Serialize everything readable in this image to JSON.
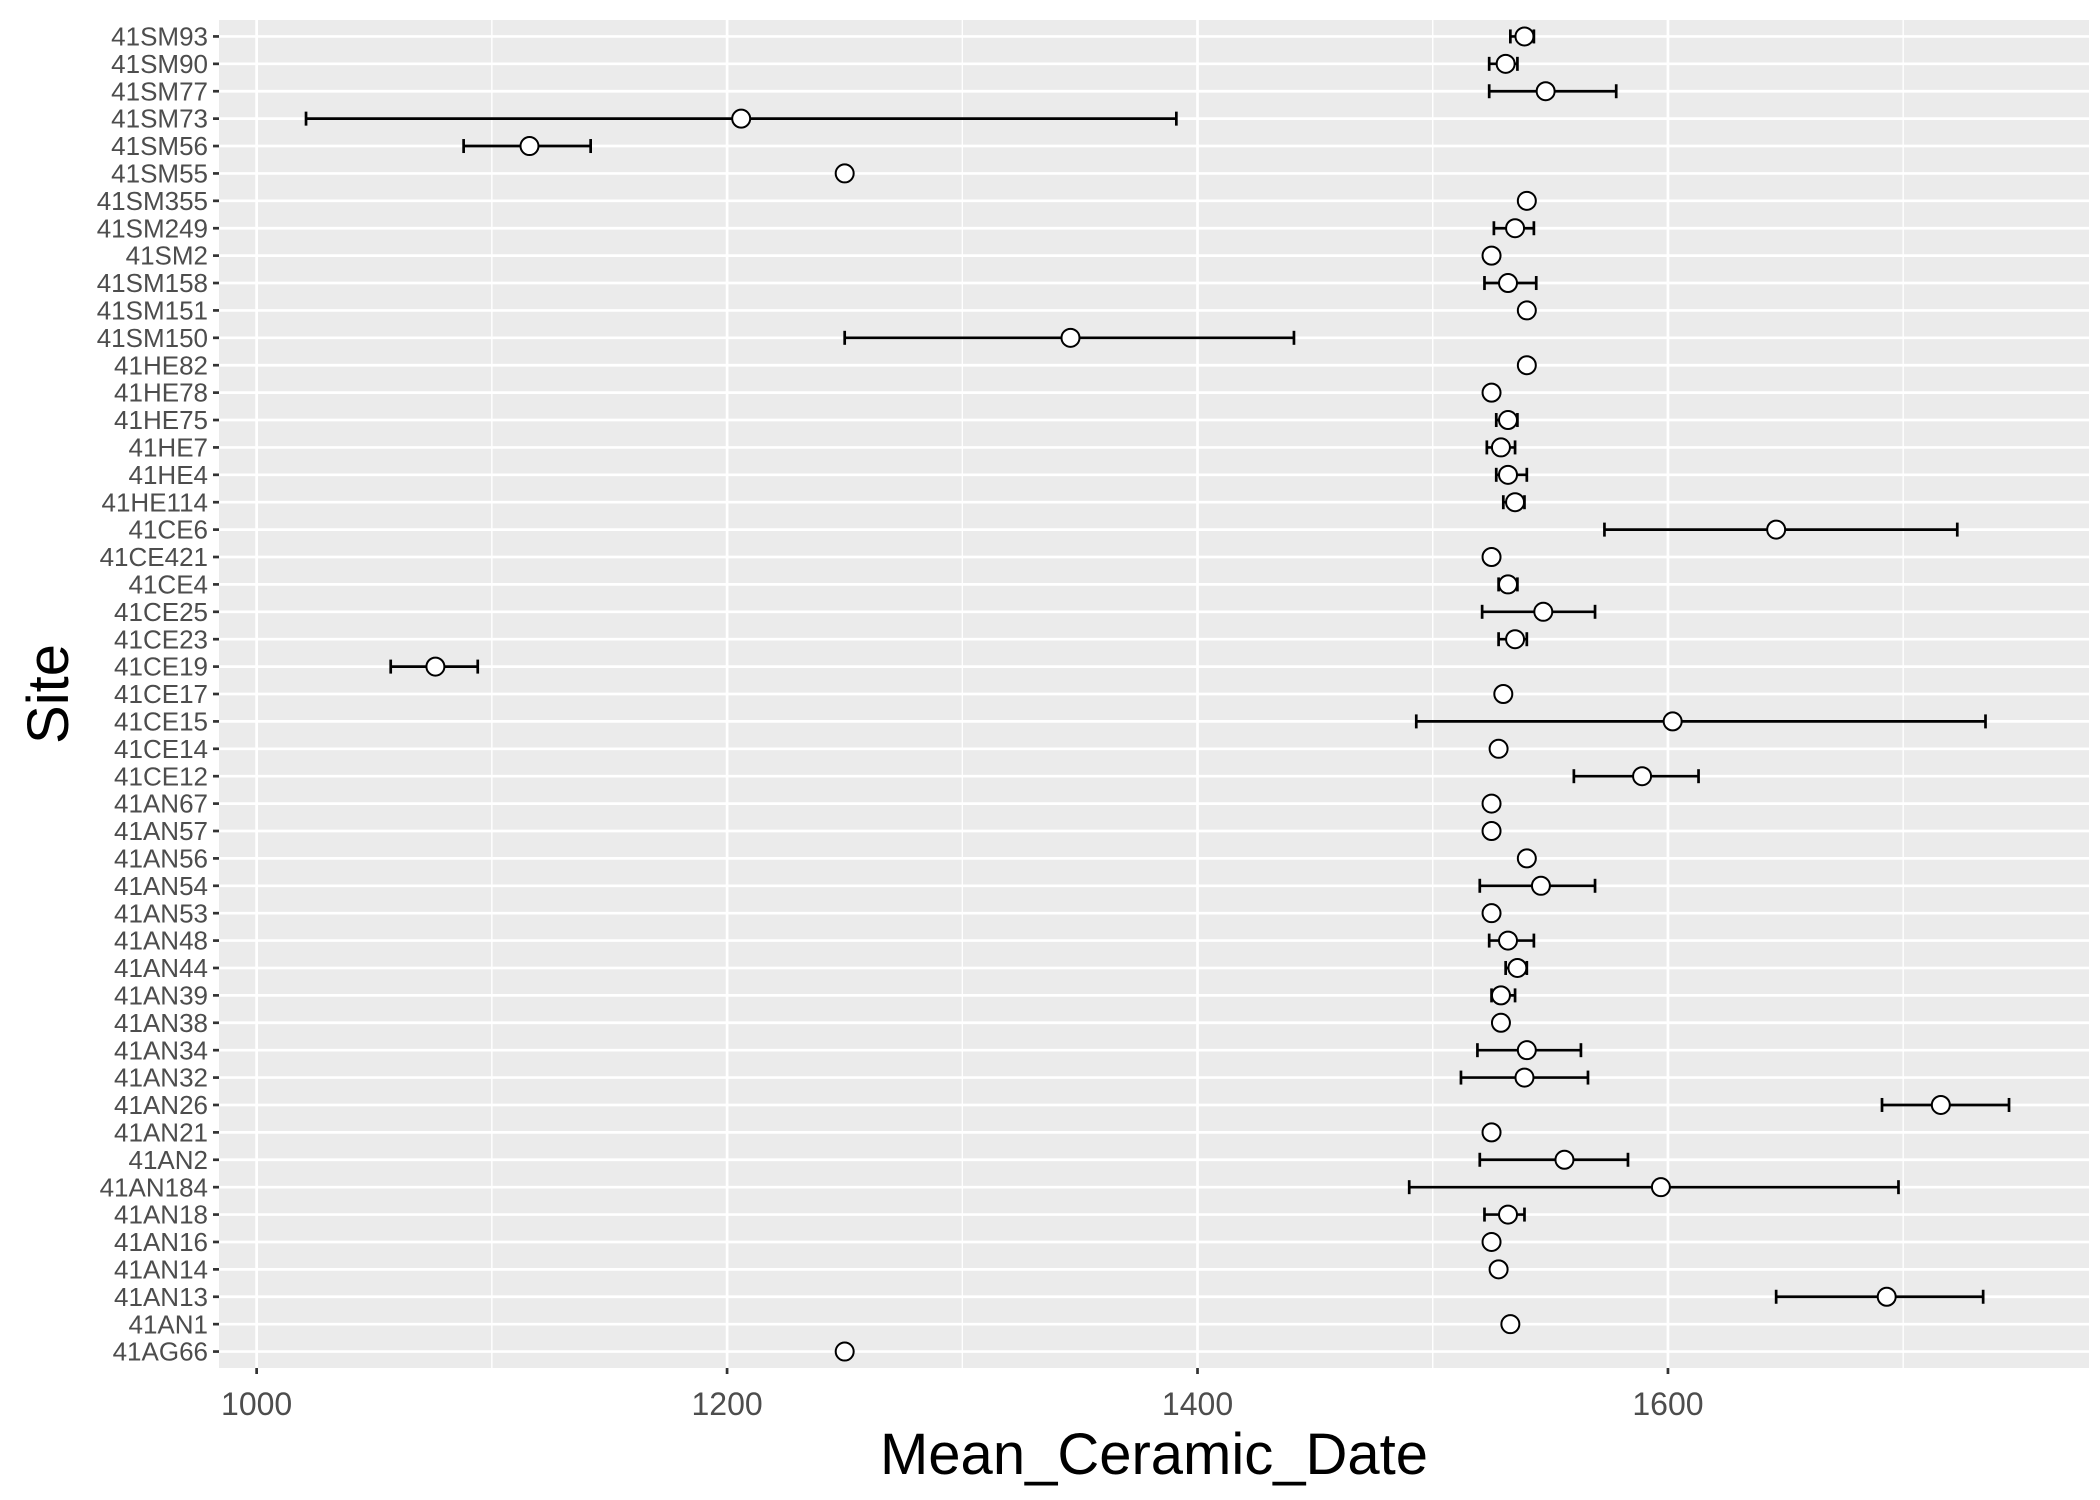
{
  "chart_data": {
    "type": "scatter",
    "xlabel": "Mean_Ceramic_Date",
    "ylabel": "Site",
    "xlim": [
      984,
      1779
    ],
    "x_ticks": [
      1000,
      1200,
      1400,
      1600
    ],
    "grid": true,
    "categories": [
      "41SM93",
      "41SM90",
      "41SM77",
      "41SM73",
      "41SM56",
      "41SM55",
      "41SM355",
      "41SM249",
      "41SM2",
      "41SM158",
      "41SM151",
      "41SM150",
      "41HE82",
      "41HE78",
      "41HE75",
      "41HE7",
      "41HE4",
      "41HE114",
      "41CE6",
      "41CE421",
      "41CE4",
      "41CE25",
      "41CE23",
      "41CE19",
      "41CE17",
      "41CE15",
      "41CE14",
      "41CE12",
      "41AN67",
      "41AN57",
      "41AN56",
      "41AN54",
      "41AN53",
      "41AN48",
      "41AN44",
      "41AN39",
      "41AN38",
      "41AN34",
      "41AN32",
      "41AN26",
      "41AN21",
      "41AN2",
      "41AN184",
      "41AN18",
      "41AN16",
      "41AN14",
      "41AN13",
      "41AN1",
      "41AG66"
    ],
    "values": [
      1539,
      1531,
      1548,
      1206,
      1116,
      1250,
      1540,
      1535,
      1525,
      1532,
      1540,
      1346,
      1540,
      1525,
      1532,
      1529,
      1532,
      1535,
      1646,
      1525,
      1532,
      1547,
      1535,
      1076,
      1530,
      1602,
      1528,
      1589,
      1525,
      1525,
      1540,
      1546,
      1525,
      1532,
      1536,
      1529,
      1529,
      1540,
      1539,
      1716,
      1525,
      1556,
      1597,
      1532,
      1525,
      1528,
      1693,
      1533,
      1250
    ],
    "lower": [
      1533,
      1524,
      1524,
      1021,
      1088,
      null,
      null,
      1526,
      null,
      1522,
      null,
      1250,
      null,
      null,
      1527,
      1523,
      1527,
      1530,
      1573,
      null,
      1528,
      1521,
      1528,
      1057,
      null,
      1493,
      null,
      1560,
      null,
      null,
      null,
      1520,
      null,
      1524,
      1531,
      1525,
      null,
      1519,
      1512,
      1691,
      null,
      1520,
      1490,
      1522,
      null,
      null,
      1646,
      null,
      null
    ],
    "upper": [
      1543,
      1536,
      1578,
      1391,
      1142,
      null,
      null,
      1543,
      null,
      1544,
      null,
      1441,
      null,
      null,
      1536,
      1535,
      1540,
      1539,
      1723,
      null,
      1536,
      1569,
      1540,
      1094,
      null,
      1735,
      null,
      1613,
      null,
      null,
      null,
      1569,
      null,
      1543,
      1540,
      1535,
      null,
      1563,
      1566,
      1745,
      null,
      1583,
      1698,
      1539,
      null,
      null,
      1734,
      null,
      null
    ]
  },
  "style": {
    "panel_background": "#EBEBEB",
    "grid_color": "#FFFFFF",
    "point_fill": "#FFFFFF",
    "point_stroke": "#000000",
    "errorbar_color": "#000000",
    "tick_color": "#333333",
    "axis_text_color": "#4D4D4D",
    "axis_title_color": "#000000"
  }
}
